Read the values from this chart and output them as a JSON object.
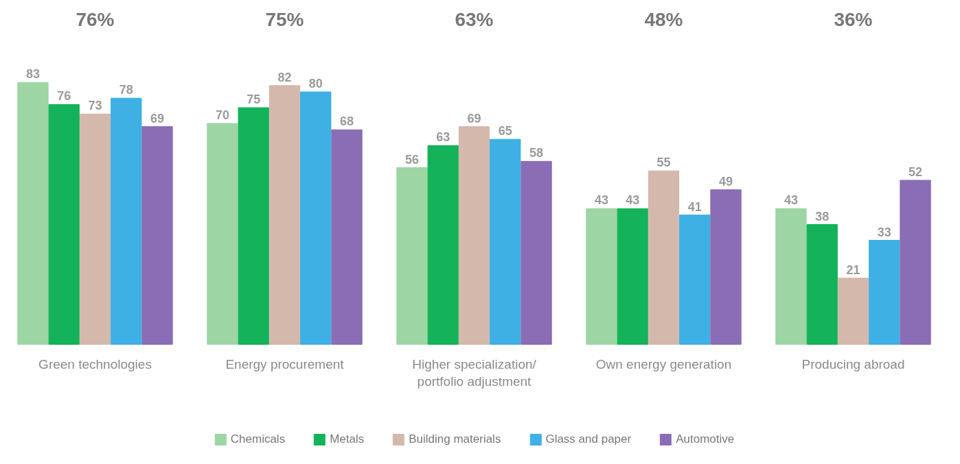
{
  "chart_data": {
    "type": "bar",
    "categories": [
      "Green technologies",
      "Energy procurement",
      "Higher specialization/ portfolio adjustment",
      "Own energy generation",
      "Producing abroad"
    ],
    "series": [
      {
        "name": "Chemicals",
        "color": "#9dd5a5",
        "values": [
          83,
          70,
          56,
          43,
          43
        ]
      },
      {
        "name": "Metals",
        "color": "#14b35a",
        "values": [
          76,
          75,
          63,
          43,
          38
        ]
      },
      {
        "name": "Building materials",
        "color": "#d3b8ab",
        "values": [
          73,
          82,
          69,
          55,
          21
        ]
      },
      {
        "name": "Glass and paper",
        "color": "#3eb0e4",
        "values": [
          78,
          80,
          65,
          41,
          33
        ]
      },
      {
        "name": "Automotive",
        "color": "#8a6db5",
        "values": [
          69,
          68,
          58,
          49,
          52
        ]
      }
    ],
    "annotations": [
      "76%",
      "75%",
      "63%",
      "48%",
      "36%"
    ],
    "data_labels": true,
    "legend": "bottom",
    "grid": false,
    "tick_labels": "x"
  }
}
